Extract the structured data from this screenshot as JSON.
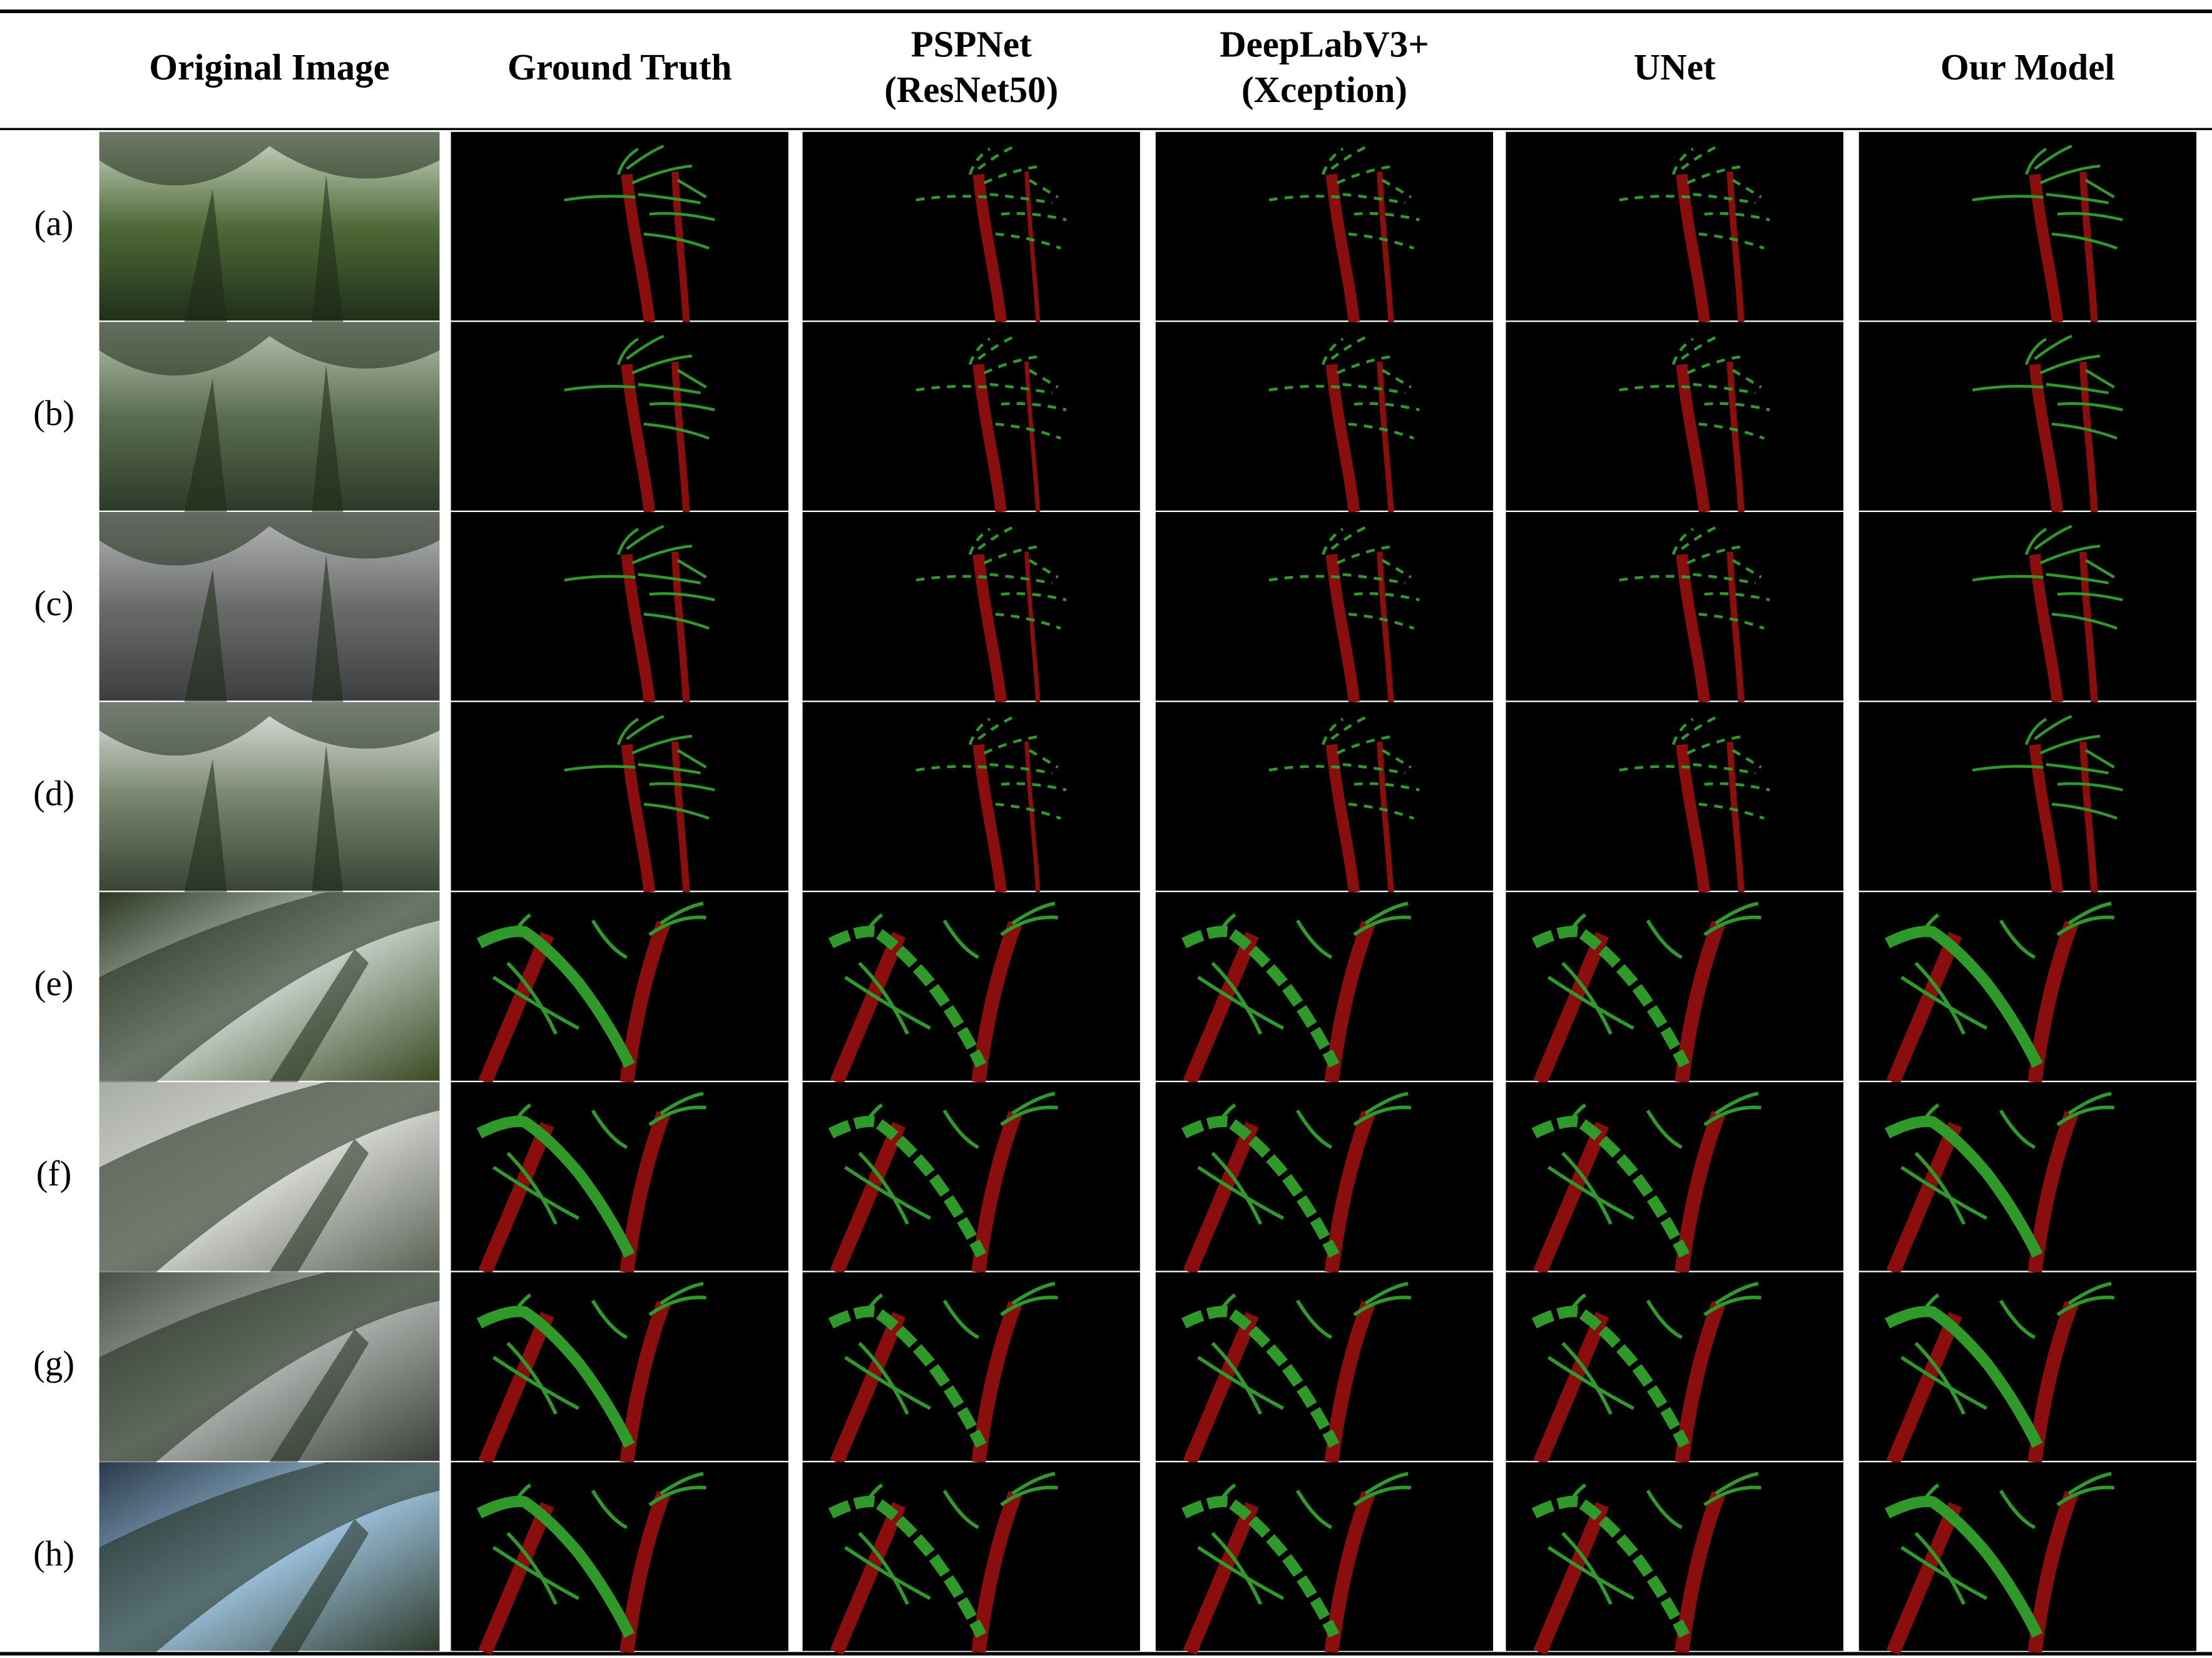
{
  "figure": {
    "columns": [
      [
        "Original Image"
      ],
      [
        "Ground Truth"
      ],
      [
        "PSPNet",
        "(ResNet50)"
      ],
      [
        "DeepLabV3+",
        "(Xception)"
      ],
      [
        "UNet"
      ],
      [
        "Our Model"
      ]
    ],
    "rows": [
      "(a)",
      "(b)",
      "(c)",
      "(d)",
      "(e)",
      "(f)",
      "(g)",
      "(h)"
    ]
  }
}
